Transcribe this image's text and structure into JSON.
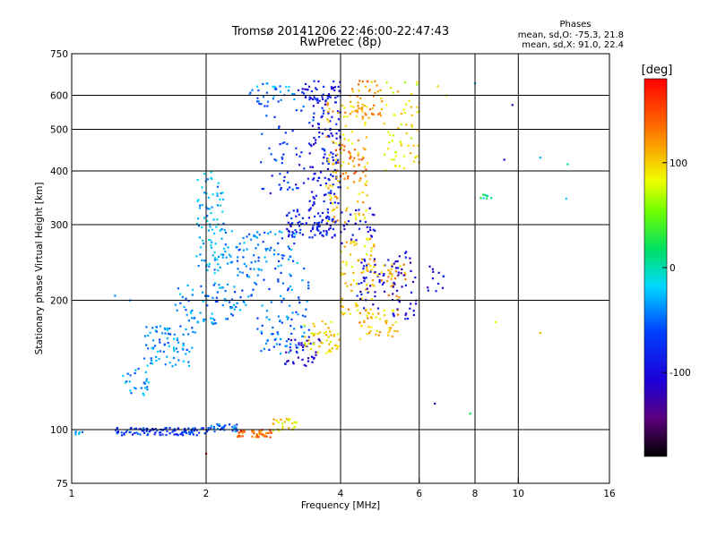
{
  "chart_data": {
    "type": "scatter",
    "title": "Tromsø 20141206 22:46:00-22:47:43",
    "subtitle": "RwPretec (8p)",
    "xlabel": "Frequency [MHz]",
    "ylabel": "Stationary phase Virtual Height [km]",
    "x_scale": "log",
    "y_scale": "log",
    "xlim": [
      1,
      16
    ],
    "ylim": [
      75,
      750
    ],
    "x_ticks": [
      1,
      2,
      4,
      6,
      8,
      10,
      16
    ],
    "x_ticklabels": [
      "1",
      "2",
      "4",
      "6",
      "8",
      "10",
      "16"
    ],
    "y_ticks": [
      75,
      100,
      200,
      300,
      400,
      500,
      600,
      750
    ],
    "y_ticklabels": [
      "75",
      "100",
      "200",
      "300",
      "400",
      "500",
      "600",
      "750"
    ],
    "grid_x": [
      2,
      4,
      6,
      8,
      10
    ],
    "grid_y": [
      100,
      200,
      300,
      400,
      500,
      600
    ],
    "phase_stats": {
      "header": "Phases",
      "o_line": "mean, sd,O: -75.3, 21.8",
      "x_line": "mean, sd,X:  91.0, 22.4"
    },
    "colorbar": {
      "label": "[deg]",
      "range": [
        -180,
        180
      ],
      "ticks": [
        -100,
        0,
        100
      ],
      "ticklabels": [
        "-100",
        "0",
        "100"
      ],
      "colormap": "rainbow"
    },
    "clusters": [
      {
        "x": [
          1.02,
          1.06
        ],
        "y": [
          97,
          100
        ],
        "phase": -40,
        "n": 6
      },
      {
        "x": [
          1.25,
          2.05
        ],
        "y": [
          97,
          101
        ],
        "phase": -70,
        "n": 110
      },
      {
        "x": [
          2.05,
          2.35
        ],
        "y": [
          99,
          103
        ],
        "phase": -55,
        "n": 30
      },
      {
        "x": [
          2.35,
          2.8
        ],
        "y": [
          96,
          100
        ],
        "phase": 140,
        "n": 45
      },
      {
        "x": [
          2.8,
          3.2
        ],
        "y": [
          99,
          106
        ],
        "phase": 95,
        "n": 25
      },
      {
        "x": [
          1.28,
          1.5
        ],
        "y": [
          120,
          140
        ],
        "phase": -35,
        "n": 25
      },
      {
        "x": [
          1.45,
          1.9
        ],
        "y": [
          140,
          175
        ],
        "phase": -40,
        "n": 80
      },
      {
        "x": [
          1.7,
          2.3
        ],
        "y": [
          175,
          220
        ],
        "phase": -40,
        "n": 70
      },
      {
        "x": [
          1.9,
          2.2
        ],
        "y": [
          230,
          400
        ],
        "phase": -30,
        "n": 90
      },
      {
        "x": [
          2.2,
          3.2
        ],
        "y": [
          240,
          290
        ],
        "phase": -45,
        "n": 80
      },
      {
        "x": [
          2.3,
          3.4
        ],
        "y": [
          190,
          240
        ],
        "phase": -45,
        "n": 60
      },
      {
        "x": [
          2.6,
          3.4
        ],
        "y": [
          150,
          190
        ],
        "phase": -50,
        "n": 60
      },
      {
        "x": [
          3.0,
          3.6
        ],
        "y": [
          140,
          165
        ],
        "phase": -110,
        "n": 40
      },
      {
        "x": [
          3.3,
          4.0
        ],
        "y": [
          150,
          180
        ],
        "phase": 95,
        "n": 50
      },
      {
        "x": [
          3.0,
          3.9
        ],
        "y": [
          280,
          330
        ],
        "phase": -85,
        "n": 90
      },
      {
        "x": [
          3.4,
          4.0
        ],
        "y": [
          330,
          600
        ],
        "phase": -90,
        "n": 120
      },
      {
        "x": [
          2.6,
          3.5
        ],
        "y": [
          350,
          600
        ],
        "phase": -70,
        "n": 60
      },
      {
        "x": [
          2.5,
          3.2
        ],
        "y": [
          580,
          640
        ],
        "phase": -40,
        "n": 30
      },
      {
        "x": [
          3.2,
          4.0
        ],
        "y": [
          580,
          650
        ],
        "phase": -95,
        "n": 40
      },
      {
        "x": [
          3.7,
          4.6
        ],
        "y": [
          300,
          580
        ],
        "phase": 105,
        "n": 110
      },
      {
        "x": [
          3.9,
          4.6
        ],
        "y": [
          380,
          460
        ],
        "phase": 135,
        "n": 30
      },
      {
        "x": [
          4.0,
          4.8
        ],
        "y": [
          180,
          280
        ],
        "phase": 100,
        "n": 80
      },
      {
        "x": [
          4.3,
          5.2
        ],
        "y": [
          190,
          250
        ],
        "phase": -100,
        "n": 40
      },
      {
        "x": [
          4.6,
          5.6
        ],
        "y": [
          200,
          250
        ],
        "phase": 110,
        "n": 35
      },
      {
        "x": [
          4.4,
          5.4
        ],
        "y": [
          160,
          190
        ],
        "phase": 105,
        "n": 40
      },
      {
        "x": [
          5.2,
          5.9
        ],
        "y": [
          180,
          260
        ],
        "phase": -110,
        "n": 45
      },
      {
        "x": [
          4.2,
          5.0
        ],
        "y": [
          530,
          650
        ],
        "phase": 120,
        "n": 45
      },
      {
        "x": [
          5.0,
          6.0
        ],
        "y": [
          400,
          650
        ],
        "phase": 90,
        "n": 60
      },
      {
        "x": [
          4.0,
          4.8
        ],
        "y": [
          270,
          330
        ],
        "phase": -95,
        "n": 30
      },
      {
        "x": [
          6.2,
          6.9
        ],
        "y": [
          210,
          240
        ],
        "phase": -100,
        "n": 12
      },
      {
        "x": [
          8.1,
          8.7
        ],
        "y": [
          345,
          355
        ],
        "phase": 10,
        "n": 8
      }
    ],
    "outliers": [
      {
        "x": 6.5,
        "y": 115,
        "phase": -120
      },
      {
        "x": 7.8,
        "y": 109,
        "phase": 20
      },
      {
        "x": 8.9,
        "y": 178,
        "phase": 80
      },
      {
        "x": 11.2,
        "y": 168,
        "phase": 110
      },
      {
        "x": 12.8,
        "y": 345,
        "phase": -20
      },
      {
        "x": 12.9,
        "y": 415,
        "phase": 0
      },
      {
        "x": 11.2,
        "y": 430,
        "phase": -30
      },
      {
        "x": 9.3,
        "y": 425,
        "phase": -110
      },
      {
        "x": 9.7,
        "y": 570,
        "phase": -120
      },
      {
        "x": 8.0,
        "y": 640,
        "phase": -30
      },
      {
        "x": 2.0,
        "y": 88,
        "phase": 170
      },
      {
        "x": 1.35,
        "y": 200,
        "phase": -40
      },
      {
        "x": 1.25,
        "y": 205,
        "phase": -40
      },
      {
        "x": 6.6,
        "y": 630,
        "phase": 100
      },
      {
        "x": 6.9,
        "y": 600,
        "phase": 70
      }
    ]
  }
}
